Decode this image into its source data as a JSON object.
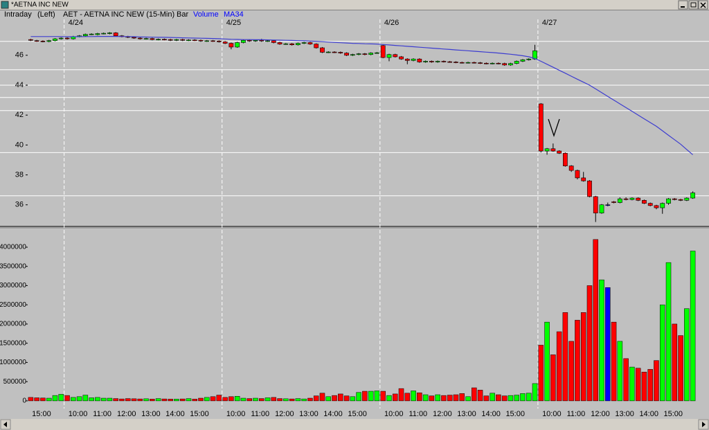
{
  "window": {
    "title": "*AETNA INC NEW"
  },
  "chart_data": {
    "type": "candlestick",
    "mode": "Intraday",
    "scale_label": "(Left)",
    "title": "AET - AETNA INC NEW (15-Min)",
    "style": "Bar",
    "categories": [
      null,
      null,
      "15:00",
      null,
      null,
      null,
      null,
      null,
      "10:00",
      null,
      null,
      null,
      "11:00",
      null,
      null,
      null,
      "12:00",
      null,
      null,
      null,
      "13:00",
      null,
      null,
      null,
      "14:00",
      null,
      null,
      null,
      "15:00",
      null,
      null,
      null,
      null,
      null,
      "10:00",
      null,
      null,
      null,
      "11:00",
      null,
      null,
      null,
      "12:00",
      null,
      null,
      null,
      "13:00",
      null,
      null,
      null,
      "14:00",
      null,
      null,
      null,
      "15:00",
      null,
      null,
      null,
      null,
      null,
      "10:00",
      null,
      null,
      null,
      "11:00",
      null,
      null,
      null,
      "12:00",
      null,
      null,
      null,
      "13:00",
      null,
      null,
      null,
      "14:00",
      null,
      null,
      null,
      "15:00",
      null,
      null,
      null,
      null,
      null,
      "10:00",
      null,
      null,
      null,
      "11:00",
      null,
      null,
      null,
      "12:00",
      null,
      null,
      null,
      "13:00",
      null,
      null,
      null,
      "14:00",
      null,
      null,
      null,
      "15:00",
      null,
      null,
      null
    ],
    "date_labels": [
      null,
      null,
      null,
      null,
      null,
      null,
      "4/24",
      null,
      null,
      null,
      null,
      null,
      null,
      null,
      null,
      null,
      null,
      null,
      null,
      null,
      null,
      null,
      null,
      null,
      null,
      null,
      null,
      null,
      null,
      null,
      null,
      null,
      "4/25",
      null,
      null,
      null,
      null,
      null,
      null,
      null,
      null,
      null,
      null,
      null,
      null,
      null,
      null,
      null,
      null,
      null,
      null,
      null,
      null,
      null,
      null,
      null,
      null,
      null,
      "4/26",
      null,
      null,
      null,
      null,
      null,
      null,
      null,
      null,
      null,
      null,
      null,
      null,
      null,
      null,
      null,
      null,
      null,
      null,
      null,
      null,
      null,
      null,
      null,
      null,
      null,
      "4/27",
      null,
      null,
      null,
      null,
      null,
      null,
      null,
      null,
      null,
      null,
      null,
      null,
      null,
      null,
      null,
      null,
      null,
      null,
      null,
      null,
      null,
      null,
      null,
      null,
      null
    ],
    "open": [
      47.05,
      46.98,
      46.95,
      46.92,
      46.98,
      47.1,
      47.15,
      47.1,
      47.25,
      47.3,
      47.4,
      47.38,
      47.45,
      47.45,
      47.5,
      47.3,
      47.25,
      47.2,
      47.15,
      47.1,
      47.12,
      47.05,
      47.07,
      47.05,
      47.0,
      47.05,
      47.0,
      47.02,
      47.0,
      46.95,
      46.97,
      46.95,
      46.9,
      46.8,
      46.55,
      46.85,
      47.0,
      46.95,
      47.0,
      46.95,
      46.97,
      46.85,
      46.75,
      46.77,
      46.7,
      46.8,
      46.85,
      46.75,
      46.5,
      46.2,
      46.22,
      46.2,
      46.15,
      46.0,
      46.05,
      46.1,
      46.05,
      46.15,
      46.65,
      45.85,
      46.05,
      45.9,
      45.75,
      45.65,
      45.75,
      45.55,
      45.6,
      45.55,
      45.6,
      45.57,
      45.55,
      45.52,
      45.5,
      45.52,
      45.5,
      45.47,
      45.45,
      45.47,
      45.45,
      45.35,
      45.45,
      45.6,
      45.7,
      45.75,
      42.75,
      39.6,
      39.75,
      39.6,
      39.45,
      38.6,
      38.3,
      37.8,
      37.6,
      36.55,
      35.45,
      36.0,
      36.2,
      36.15,
      36.4,
      36.35,
      36.45,
      36.3,
      36.1,
      35.95,
      35.8,
      36.1,
      36.4,
      36.35,
      36.3,
      36.45
    ],
    "high": [
      47.1,
      47.03,
      47.0,
      47.03,
      47.15,
      47.2,
      47.2,
      47.3,
      47.35,
      47.45,
      47.47,
      47.5,
      47.52,
      47.55,
      47.55,
      47.35,
      47.3,
      47.25,
      47.2,
      47.17,
      47.17,
      47.12,
      47.12,
      47.1,
      47.1,
      47.1,
      47.07,
      47.07,
      47.05,
      47.02,
      47.02,
      47.0,
      46.95,
      46.85,
      46.9,
      47.05,
      47.05,
      47.05,
      47.1,
      47.02,
      47.02,
      46.9,
      46.82,
      46.82,
      46.85,
      46.9,
      46.9,
      46.8,
      46.55,
      46.27,
      46.27,
      46.25,
      46.2,
      46.1,
      46.15,
      46.15,
      46.2,
      46.22,
      46.7,
      46.1,
      46.1,
      45.95,
      45.8,
      45.8,
      45.8,
      45.65,
      45.65,
      45.65,
      45.65,
      45.62,
      45.6,
      45.57,
      45.57,
      45.57,
      45.55,
      45.52,
      45.52,
      45.52,
      45.5,
      45.5,
      45.65,
      45.75,
      45.8,
      46.7,
      42.8,
      39.8,
      40.1,
      39.65,
      39.5,
      38.65,
      38.35,
      38.2,
      37.65,
      36.6,
      36.05,
      36.15,
      36.25,
      36.5,
      36.5,
      36.5,
      36.5,
      36.35,
      36.15,
      36.0,
      36.15,
      36.45,
      36.45,
      36.4,
      36.5,
      36.9
    ],
    "low": [
      46.95,
      46.9,
      46.87,
      46.87,
      46.93,
      47.05,
      47.05,
      47.05,
      47.2,
      47.25,
      47.35,
      47.33,
      47.4,
      47.4,
      47.25,
      47.2,
      47.15,
      47.1,
      47.05,
      47.05,
      47.0,
      47.0,
      47.0,
      46.95,
      46.95,
      46.95,
      46.95,
      46.95,
      46.9,
      46.9,
      46.9,
      46.85,
      46.75,
      46.4,
      46.5,
      46.8,
      46.9,
      46.9,
      46.9,
      46.9,
      46.8,
      46.7,
      46.7,
      46.65,
      46.65,
      46.75,
      46.7,
      46.45,
      46.15,
      46.15,
      46.15,
      46.1,
      45.95,
      45.95,
      46.0,
      46.0,
      46.0,
      46.1,
      45.8,
      45.6,
      45.85,
      45.7,
      45.4,
      45.6,
      45.5,
      45.5,
      45.5,
      45.5,
      45.52,
      45.5,
      45.47,
      45.45,
      45.45,
      45.45,
      45.42,
      45.4,
      45.4,
      45.4,
      45.3,
      45.3,
      45.4,
      45.55,
      45.65,
      45.7,
      39.5,
      39.35,
      39.55,
      39.4,
      38.55,
      38.2,
      37.7,
      37.55,
      36.5,
      34.85,
      35.4,
      35.9,
      36.1,
      36.1,
      36.3,
      36.3,
      36.25,
      36.05,
      35.9,
      35.7,
      35.4,
      36.0,
      36.3,
      36.25,
      36.25,
      36.4
    ],
    "close": [
      47.0,
      46.95,
      46.92,
      46.98,
      47.1,
      47.15,
      47.1,
      47.25,
      47.3,
      47.4,
      47.42,
      47.45,
      47.47,
      47.5,
      47.3,
      47.25,
      47.2,
      47.15,
      47.1,
      47.12,
      47.05,
      47.07,
      47.05,
      47.0,
      47.05,
      47.0,
      47.02,
      47.0,
      46.95,
      46.97,
      46.95,
      46.9,
      46.8,
      46.55,
      46.85,
      47.0,
      46.95,
      47.0,
      46.95,
      46.97,
      46.85,
      46.75,
      46.77,
      46.7,
      46.8,
      46.85,
      46.75,
      46.5,
      46.2,
      46.22,
      46.2,
      46.15,
      46.0,
      46.05,
      46.1,
      46.05,
      46.15,
      46.17,
      45.85,
      46.05,
      45.9,
      45.75,
      45.65,
      45.75,
      45.55,
      45.6,
      45.55,
      45.6,
      45.57,
      45.55,
      45.52,
      45.5,
      45.52,
      45.5,
      45.47,
      45.45,
      45.47,
      45.45,
      45.35,
      45.45,
      45.6,
      45.7,
      45.75,
      46.3,
      39.6,
      39.75,
      39.6,
      39.45,
      38.6,
      38.3,
      37.8,
      37.6,
      36.55,
      35.45,
      36.0,
      36.0,
      36.15,
      36.4,
      36.35,
      36.45,
      36.3,
      36.1,
      35.95,
      35.8,
      36.1,
      36.4,
      36.35,
      36.3,
      36.45,
      36.8
    ],
    "ylim": [
      34.6,
      48.4
    ],
    "yticks": [
      36,
      38,
      40,
      42,
      44,
      46
    ],
    "reference_lines": [
      46.93,
      45.03,
      44.0,
      43.18,
      42.3,
      39.49,
      36.6
    ],
    "up_color": "#00ff00",
    "down_color": "#ff0000",
    "flat_color": "#0000ff",
    "ma": {
      "name": "MA34",
      "color": "#3c3cd0",
      "values": [
        47.25,
        47.25,
        47.25,
        47.25,
        47.25,
        47.25,
        47.24,
        47.24,
        47.24,
        47.25,
        47.25,
        47.26,
        47.26,
        47.26,
        47.26,
        47.25,
        47.25,
        47.24,
        47.23,
        47.22,
        47.21,
        47.2,
        47.2,
        47.19,
        47.18,
        47.17,
        47.16,
        47.15,
        47.14,
        47.13,
        47.12,
        47.11,
        47.09,
        47.07,
        47.06,
        47.05,
        47.05,
        47.04,
        47.04,
        47.03,
        47.02,
        47.01,
        47.0,
        46.99,
        46.98,
        46.97,
        46.95,
        46.93,
        46.91,
        46.88,
        46.86,
        46.84,
        46.82,
        46.8,
        46.79,
        46.77,
        46.76,
        46.75,
        46.72,
        46.69,
        46.66,
        46.63,
        46.6,
        46.57,
        46.54,
        46.51,
        46.48,
        46.45,
        46.42,
        46.39,
        46.36,
        46.33,
        46.3,
        46.27,
        46.24,
        46.21,
        46.18,
        46.15,
        46.11,
        46.07,
        46.02,
        45.97,
        45.9,
        45.79,
        45.6,
        45.4,
        45.2,
        45.0,
        44.8,
        44.6,
        44.4,
        44.2,
        44.0,
        43.75,
        43.5,
        43.25,
        43.0,
        42.75,
        42.5,
        42.25,
        42.0,
        41.75,
        41.5,
        41.25,
        40.95,
        40.65,
        40.35,
        40.05,
        39.7,
        39.35
      ]
    },
    "volume": {
      "name": "Volume",
      "color": "#0000ff",
      "values": [
        90000,
        80000,
        75000,
        70000,
        140000,
        170000,
        140000,
        90000,
        110000,
        150000,
        80000,
        90000,
        70000,
        70000,
        60000,
        50000,
        60000,
        55000,
        50000,
        55000,
        45000,
        60000,
        50000,
        45000,
        45000,
        50000,
        60000,
        45000,
        70000,
        90000,
        110000,
        150000,
        90000,
        110000,
        120000,
        70000,
        60000,
        70000,
        60000,
        80000,
        90000,
        60000,
        55000,
        50000,
        60000,
        50000,
        70000,
        130000,
        200000,
        110000,
        140000,
        180000,
        130000,
        110000,
        220000,
        250000,
        250000,
        260000,
        250000,
        140000,
        180000,
        320000,
        200000,
        260000,
        210000,
        160000,
        130000,
        160000,
        140000,
        150000,
        160000,
        190000,
        110000,
        340000,
        280000,
        130000,
        200000,
        160000,
        130000,
        140000,
        150000,
        190000,
        200000,
        450000,
        1450000,
        2050000,
        1200000,
        1800000,
        2300000,
        1550000,
        2100000,
        2300000,
        3000000,
        4200000,
        3150000,
        2950000,
        2050000,
        1550000,
        1100000,
        880000,
        850000,
        750000,
        820000,
        1050000,
        2500000,
        3600000,
        2000000,
        1700000,
        2400000,
        3900000
      ],
      "ylim": [
        -200000,
        4450000
      ],
      "yticks": [
        0,
        500000,
        1000000,
        1500000,
        2000000,
        2500000,
        3000000,
        3500000,
        4000000
      ]
    }
  }
}
